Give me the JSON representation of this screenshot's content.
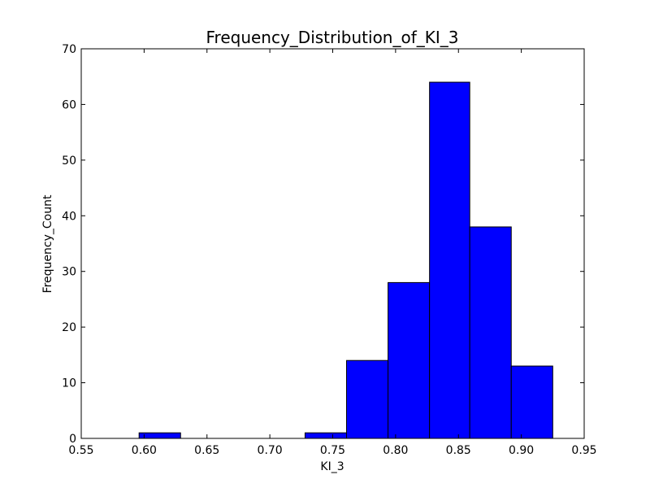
{
  "chart_data": {
    "type": "bar",
    "title": "Frequency_Distribution_of_KI_3",
    "xlabel": "KI_3",
    "ylabel": "Frequency_Count",
    "xlim": [
      0.55,
      0.95
    ],
    "ylim": [
      0,
      70
    ],
    "x_ticks": [
      0.55,
      0.6,
      0.65,
      0.7,
      0.75,
      0.8,
      0.85,
      0.9,
      0.95
    ],
    "x_tick_labels": [
      "0.55",
      "0.60",
      "0.65",
      "0.70",
      "0.75",
      "0.80",
      "0.85",
      "0.90",
      "0.95"
    ],
    "y_ticks": [
      0,
      10,
      20,
      30,
      40,
      50,
      60,
      70
    ],
    "y_tick_labels": [
      "0",
      "10",
      "20",
      "30",
      "40",
      "50",
      "60",
      "70"
    ],
    "bins": [
      {
        "start": 0.596,
        "end": 0.629,
        "count": 1
      },
      {
        "start": 0.629,
        "end": 0.662,
        "count": 0
      },
      {
        "start": 0.662,
        "end": 0.695,
        "count": 0
      },
      {
        "start": 0.695,
        "end": 0.728,
        "count": 0
      },
      {
        "start": 0.728,
        "end": 0.761,
        "count": 1
      },
      {
        "start": 0.761,
        "end": 0.794,
        "count": 14
      },
      {
        "start": 0.794,
        "end": 0.827,
        "count": 28
      },
      {
        "start": 0.827,
        "end": 0.859,
        "count": 64
      },
      {
        "start": 0.859,
        "end": 0.892,
        "count": 38
      },
      {
        "start": 0.892,
        "end": 0.925,
        "count": 13
      }
    ],
    "bar_color": "#0000ff",
    "edge_color": "#000000",
    "grid": false,
    "legend": false
  }
}
